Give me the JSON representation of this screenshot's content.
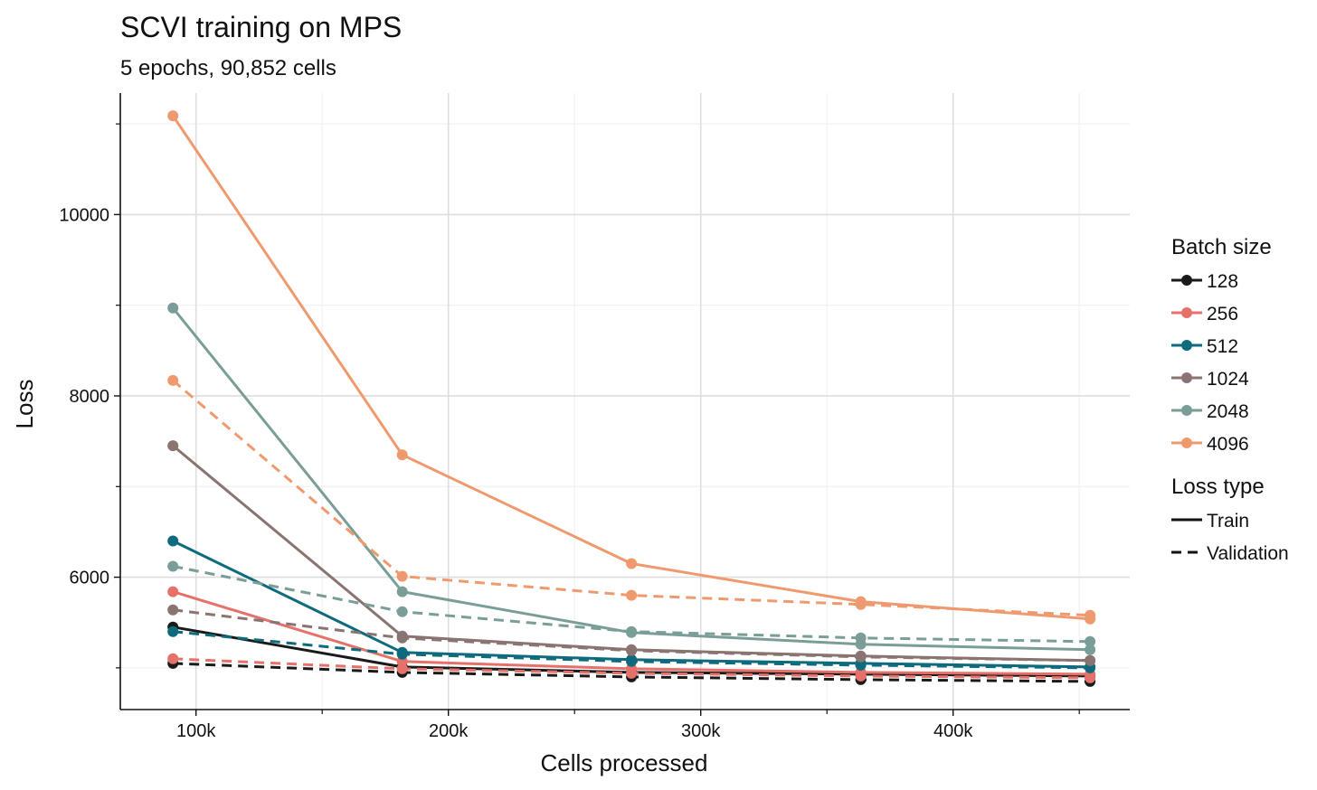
{
  "chart_data": {
    "type": "line",
    "title": "SCVI training on MPS",
    "subtitle": "5 epochs, 90,852 cells",
    "xlabel": "Cells processed",
    "ylabel": "Loss",
    "xlim": [
      70000,
      470000
    ],
    "ylim": [
      4540,
      11340
    ],
    "x_ticks": [
      100000,
      200000,
      300000,
      400000
    ],
    "x_tick_labels": [
      "100k",
      "200k",
      "300k",
      "400k"
    ],
    "y_ticks": [
      6000,
      8000,
      10000
    ],
    "y_tick_labels": [
      "6000",
      "8000",
      "10000"
    ],
    "x": [
      90852,
      181704,
      272556,
      363408,
      454260
    ],
    "grid": true,
    "legend_position": "right",
    "legend": {
      "batch_title": "Batch size",
      "type_title": "Loss type",
      "types": [
        {
          "label": "Train",
          "dash": "solid"
        },
        {
          "label": "Validation",
          "dash": "dashed"
        }
      ]
    },
    "series": [
      {
        "batch": "128",
        "color": "#1a1a1a",
        "train": [
          5450,
          5010,
          4950,
          4930,
          4910
        ],
        "validation": [
          5050,
          4950,
          4900,
          4870,
          4850
        ]
      },
      {
        "batch": "256",
        "color": "#e5716a",
        "train": [
          5840,
          5070,
          4990,
          4950,
          4930
        ],
        "validation": [
          5100,
          4990,
          4940,
          4910,
          4890
        ]
      },
      {
        "batch": "512",
        "color": "#0e6b7d",
        "train": [
          6400,
          5170,
          5090,
          5050,
          5010
        ],
        "validation": [
          5400,
          5150,
          5070,
          5030,
          5000
        ]
      },
      {
        "batch": "1024",
        "color": "#8a7471",
        "train": [
          7450,
          5350,
          5200,
          5130,
          5080
        ],
        "validation": [
          5640,
          5330,
          5190,
          5120,
          5080
        ]
      },
      {
        "batch": "2048",
        "color": "#7a9e97",
        "train": [
          8970,
          5840,
          5390,
          5260,
          5200
        ],
        "validation": [
          6120,
          5620,
          5400,
          5330,
          5290
        ]
      },
      {
        "batch": "4096",
        "color": "#ef9a6e",
        "train": [
          11090,
          7350,
          6150,
          5730,
          5540
        ],
        "validation": [
          8170,
          6010,
          5800,
          5700,
          5580
        ]
      }
    ]
  }
}
